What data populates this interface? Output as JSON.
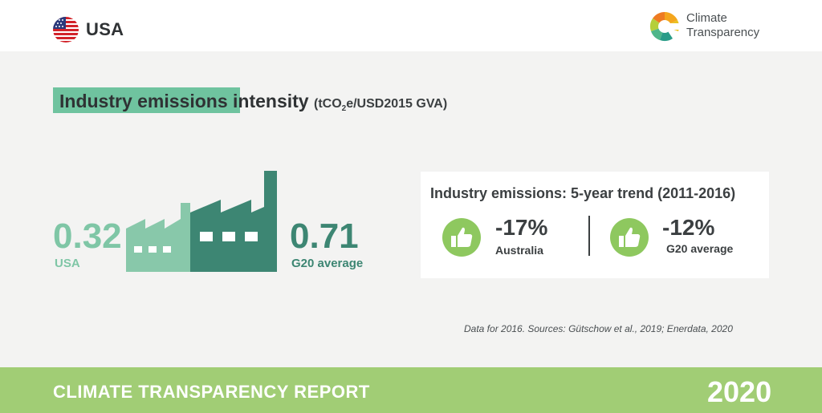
{
  "header": {
    "country": "USA",
    "brand_line1": "Climate",
    "brand_line2": "Transparency"
  },
  "title": {
    "highlight": "Industry emissions",
    "rest": "intensity",
    "unit_prefix": "(tCO",
    "unit_sub": "2",
    "unit_suffix": "e/USD2015 GVA)"
  },
  "comparison": {
    "usa_value": "0.32",
    "usa_label": "USA",
    "g20_value": "0.71",
    "g20_label": "G20 average"
  },
  "trend": {
    "title": "Industry emissions: 5-year trend (2011-2016)",
    "items": [
      {
        "value": "-17%",
        "label": "Australia"
      },
      {
        "value": "-12%",
        "label": "G20 average"
      }
    ]
  },
  "source": "Data for 2016. Sources: Gütschow et al., 2019; Enerdata, 2020",
  "footer": {
    "report": "CLIMATE TRANSPARENCY REPORT",
    "year": "2020"
  },
  "colors": {
    "light_green": "#7fc6a6",
    "dark_green": "#3d8673",
    "footer_green": "#a1cd75",
    "thumb_green": "#8ec85f"
  },
  "icons": {
    "flag": "us-flag-icon",
    "logo": "climate-transparency-logo-icon",
    "factory": "factory-icon",
    "thumb": "thumbs-up-icon"
  }
}
